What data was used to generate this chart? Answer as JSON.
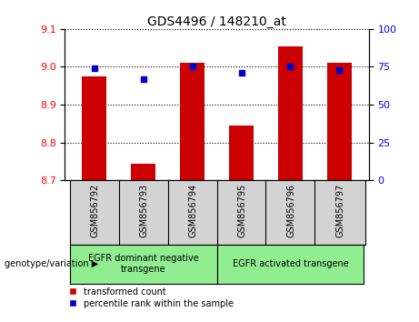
{
  "title": "GDS4496 / 148210_at",
  "categories": [
    "GSM856792",
    "GSM856793",
    "GSM856794",
    "GSM856795",
    "GSM856796",
    "GSM856797"
  ],
  "bar_values": [
    8.975,
    8.745,
    9.01,
    8.845,
    9.055,
    9.01
  ],
  "dot_values": [
    74,
    67,
    75,
    71,
    75,
    73
  ],
  "bar_color": "#cc0000",
  "dot_color": "#0000cc",
  "ylim_left": [
    8.7,
    9.1
  ],
  "ylim_right": [
    0,
    100
  ],
  "yticks_left": [
    8.7,
    8.8,
    8.9,
    9.0,
    9.1
  ],
  "yticks_right": [
    0,
    25,
    50,
    75,
    100
  ],
  "group1_label": "EGFR dominant negative\ntransgene",
  "group2_label": "EGFR activated transgene",
  "group1_indices": [
    0,
    1,
    2
  ],
  "group2_indices": [
    3,
    4,
    5
  ],
  "xlabel_main": "genotype/variation",
  "legend_bar": "transformed count",
  "legend_dot": "percentile rank within the sample",
  "bar_width": 0.5,
  "group_bg_color": "#90EE90",
  "sample_bg_color": "#d3d3d3",
  "fig_width": 4.61,
  "fig_height": 3.54,
  "dpi": 100
}
